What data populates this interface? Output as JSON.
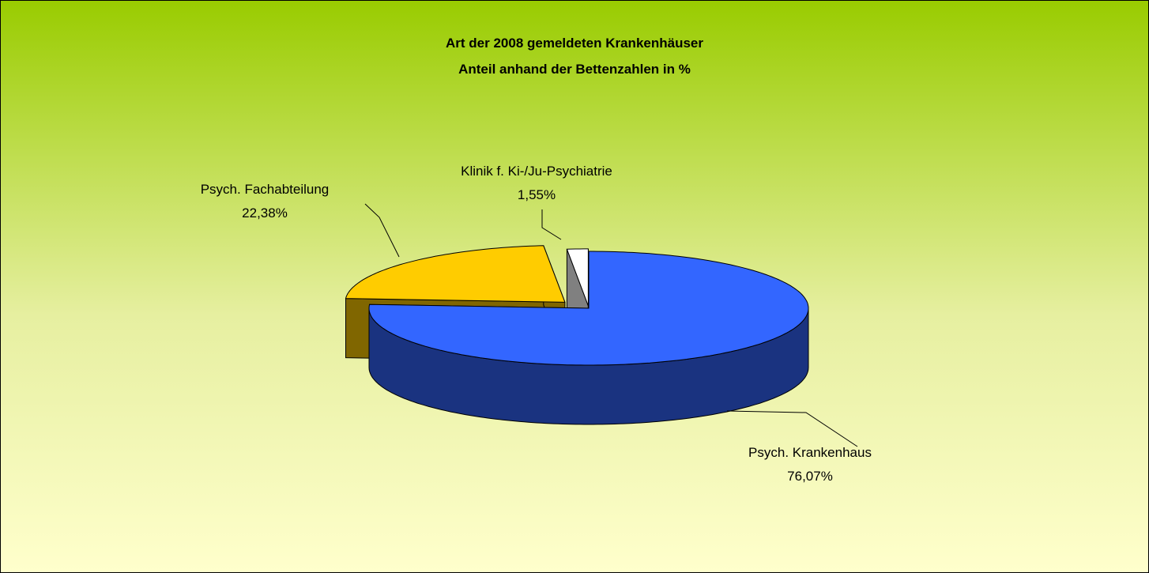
{
  "chart_data": {
    "type": "pie",
    "title": "Art der 2008 gemeldeten Krankenhäuser",
    "subtitle": "Anteil anhand der Bettenzahlen in %",
    "categories": [
      "Psych. Krankenhaus",
      "Psych. Fachabteilung",
      "Klinik f. Ki-/Ju-Psychiatrie"
    ],
    "values": [
      76.07,
      22.38,
      1.55
    ],
    "value_labels": [
      "76,07%",
      "22,38%",
      "1,55%"
    ],
    "colors": [
      "#3366ff",
      "#ffcc00",
      "#ffffff"
    ]
  }
}
